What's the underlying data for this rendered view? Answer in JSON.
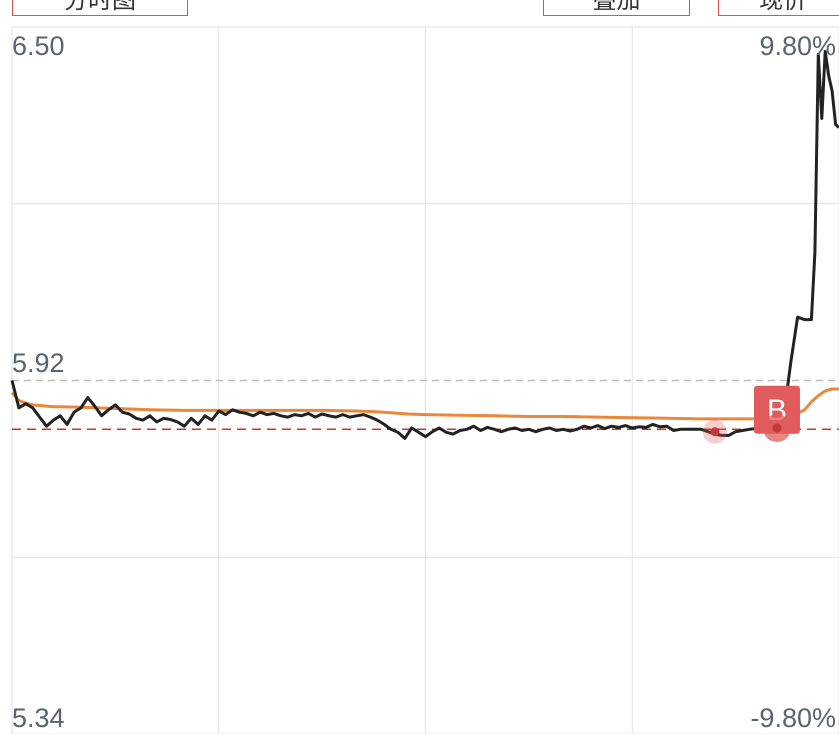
{
  "tabs": [
    {
      "label": "分时图"
    },
    {
      "label": "叠加"
    },
    {
      "label": "现价"
    }
  ],
  "colors": {
    "price_line": "#222222",
    "avg_line": "#e8883a",
    "grid": "#e2e2e2",
    "prev_close": "#bdbdbd",
    "buy_ref": "#c0392b",
    "marker": "#e05c5c",
    "axis_text": "#5b6270"
  },
  "chart_data": {
    "type": "line",
    "y_labels_left": {
      "top": "6.50",
      "mid": "5.92",
      "bottom": "5.34"
    },
    "y_labels_right": {
      "top": "9.80%",
      "bottom": "-9.80%"
    },
    "ylim": [
      5.34,
      6.5
    ],
    "prev_close": 5.92,
    "buy_reference_price": 5.84,
    "x_range": [
      0,
      240
    ],
    "series": [
      {
        "key": "price",
        "x": [
          0,
          2,
          4,
          6,
          8,
          10,
          12,
          14,
          16,
          18,
          20,
          22,
          24,
          26,
          28,
          30,
          32,
          34,
          36,
          38,
          40,
          42,
          44,
          46,
          48,
          50,
          52,
          54,
          56,
          58,
          60,
          62,
          64,
          66,
          68,
          70,
          72,
          74,
          76,
          78,
          80,
          82,
          84,
          86,
          88,
          90,
          92,
          94,
          96,
          98,
          100,
          102,
          104,
          106,
          108,
          110,
          112,
          114,
          116,
          118,
          120,
          122,
          124,
          126,
          128,
          130,
          132,
          134,
          136,
          138,
          140,
          142,
          144,
          146,
          148,
          150,
          152,
          154,
          156,
          158,
          160,
          162,
          164,
          166,
          168,
          170,
          172,
          174,
          176,
          178,
          180,
          182,
          184,
          186,
          188,
          190,
          192,
          194,
          196,
          198,
          200,
          202,
          204,
          206,
          208,
          210,
          212,
          214,
          216,
          218,
          220,
          222,
          224,
          226,
          228,
          230,
          232,
          233,
          234,
          235,
          236,
          237,
          238,
          239,
          240
        ],
        "values": [
          5.92,
          5.875,
          5.882,
          5.875,
          5.86,
          5.845,
          5.855,
          5.862,
          5.848,
          5.868,
          5.875,
          5.892,
          5.878,
          5.862,
          5.872,
          5.88,
          5.868,
          5.865,
          5.858,
          5.855,
          5.862,
          5.852,
          5.858,
          5.856,
          5.852,
          5.845,
          5.858,
          5.848,
          5.862,
          5.855,
          5.87,
          5.864,
          5.872,
          5.868,
          5.866,
          5.862,
          5.868,
          5.864,
          5.866,
          5.862,
          5.86,
          5.864,
          5.862,
          5.866,
          5.86,
          5.865,
          5.862,
          5.86,
          5.864,
          5.86,
          5.862,
          5.864,
          5.86,
          5.855,
          5.848,
          5.84,
          5.835,
          5.825,
          5.842,
          5.835,
          5.828,
          5.836,
          5.842,
          5.835,
          5.832,
          5.838,
          5.84,
          5.845,
          5.838,
          5.843,
          5.84,
          5.836,
          5.84,
          5.842,
          5.838,
          5.84,
          5.836,
          5.84,
          5.842,
          5.838,
          5.84,
          5.837,
          5.84,
          5.845,
          5.842,
          5.846,
          5.841,
          5.845,
          5.843,
          5.846,
          5.842,
          5.844,
          5.843,
          5.848,
          5.844,
          5.845,
          5.838,
          5.84,
          5.84,
          5.84,
          5.84,
          5.836,
          5.832,
          5.83,
          5.83,
          5.836,
          5.838,
          5.84,
          5.841,
          5.84,
          5.842,
          5.846,
          5.863,
          5.95,
          6.024,
          6.02,
          6.02,
          6.13,
          6.455,
          6.35,
          6.46,
          6.42,
          6.395,
          6.34,
          6.335
        ]
      },
      {
        "key": "average",
        "x": [
          0,
          2,
          4,
          6,
          8,
          10,
          12,
          14,
          20,
          30,
          40,
          50,
          60,
          70,
          80,
          90,
          100,
          105,
          110,
          115,
          120,
          130,
          140,
          150,
          160,
          170,
          180,
          190,
          200,
          210,
          215,
          220,
          222,
          225,
          228,
          230,
          232,
          234,
          236,
          238,
          240
        ],
        "values": [
          5.9,
          5.887,
          5.883,
          5.88,
          5.879,
          5.878,
          5.877,
          5.877,
          5.876,
          5.874,
          5.872,
          5.871,
          5.871,
          5.871,
          5.871,
          5.871,
          5.87,
          5.869,
          5.867,
          5.865,
          5.864,
          5.863,
          5.862,
          5.861,
          5.861,
          5.86,
          5.859,
          5.858,
          5.857,
          5.857,
          5.857,
          5.857,
          5.858,
          5.86,
          5.866,
          5.872,
          5.885,
          5.895,
          5.903,
          5.906,
          5.906
        ]
      }
    ],
    "markers": [
      {
        "x": 204,
        "value": 5.836,
        "type": "dot"
      },
      {
        "x": 222,
        "value": 5.842,
        "type": "dot"
      },
      {
        "x": 222,
        "value": 5.872,
        "type": "label",
        "text": "B"
      }
    ]
  }
}
